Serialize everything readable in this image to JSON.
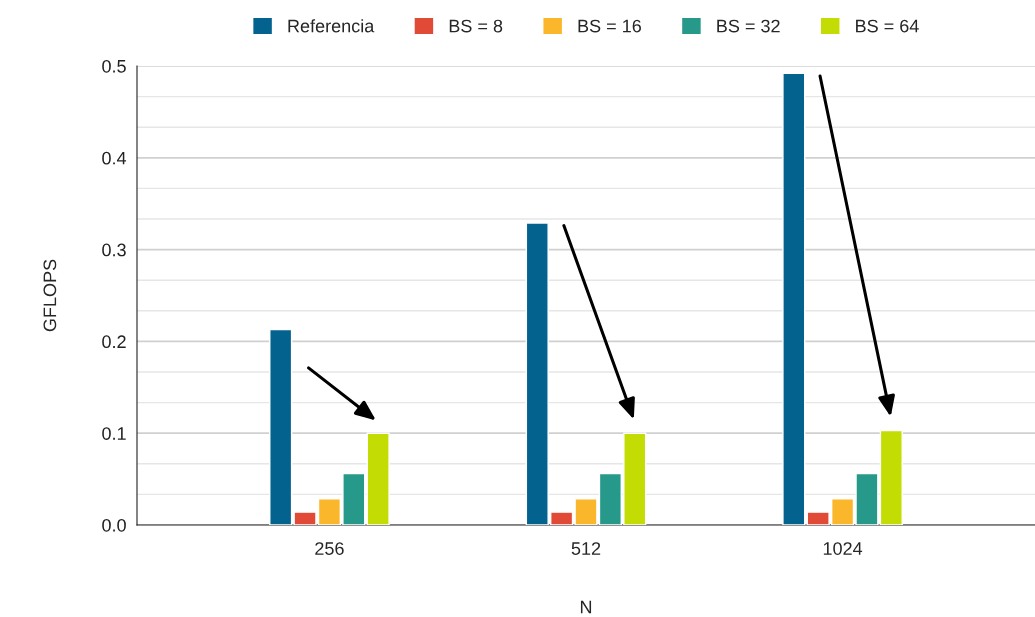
{
  "chart_data": {
    "type": "bar",
    "xlabel": "N",
    "ylabel": "GFLOPS",
    "categories": [
      "256",
      "512",
      "1024"
    ],
    "series": [
      {
        "name": "Referencia",
        "color": "#04628f",
        "values": [
          0.213,
          0.329,
          0.492
        ]
      },
      {
        "name": "BS = 8",
        "color": "#e04a36",
        "values": [
          0.014,
          0.014,
          0.014
        ]
      },
      {
        "name": "BS = 16",
        "color": "#fbb72b",
        "values": [
          0.0285,
          0.0285,
          0.0285
        ]
      },
      {
        "name": "BS = 32",
        "color": "#26998a",
        "values": [
          0.056,
          0.056,
          0.056
        ]
      },
      {
        "name": "BS = 64",
        "color": "#c3dc04",
        "values": [
          0.1,
          0.1,
          0.103
        ]
      }
    ],
    "ylim": [
      0,
      0.5
    ],
    "yticks": [
      {
        "value": 0,
        "label": "0.0"
      },
      0.1,
      0.2,
      0.3,
      0.4,
      0.5
    ],
    "grid": "y",
    "legend": "top"
  }
}
